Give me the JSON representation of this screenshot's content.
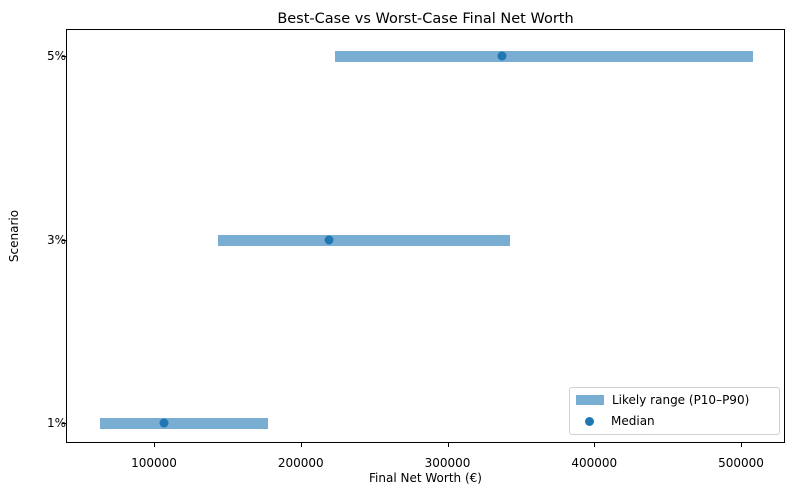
{
  "chart_data": {
    "type": "range",
    "title": "Best-Case vs Worst-Case Final Net Worth",
    "xlabel": "Final Net Worth (€)",
    "ylabel": "Scenario",
    "xlim": [
      40000,
      530000
    ],
    "xticks": [
      100000,
      200000,
      300000,
      400000,
      500000
    ],
    "categories": [
      "1%",
      "3%",
      "5%"
    ],
    "series": [
      {
        "name": "Likely range (P10–P90)",
        "type": "range",
        "low": [
          63500,
          143700,
          223600
        ],
        "high": [
          178000,
          342400,
          508000
        ]
      },
      {
        "name": "Median",
        "type": "scatter",
        "values": [
          107000,
          219300,
          337200
        ]
      }
    ],
    "legend_position": "lower right",
    "grid": false,
    "colors": {
      "range": "#1f77b4",
      "median": "#1f77b4"
    }
  },
  "title": "Best-Case vs Worst-Case Final Net Worth",
  "xlabel": "Final Net Worth (€)",
  "ylabel": "Scenario",
  "xticks": [
    "100000",
    "200000",
    "300000",
    "400000",
    "500000"
  ],
  "yticks": [
    "5%",
    "3%",
    "1%"
  ],
  "legend": {
    "range": "Likely range (P10–P90)",
    "median": "Median"
  }
}
